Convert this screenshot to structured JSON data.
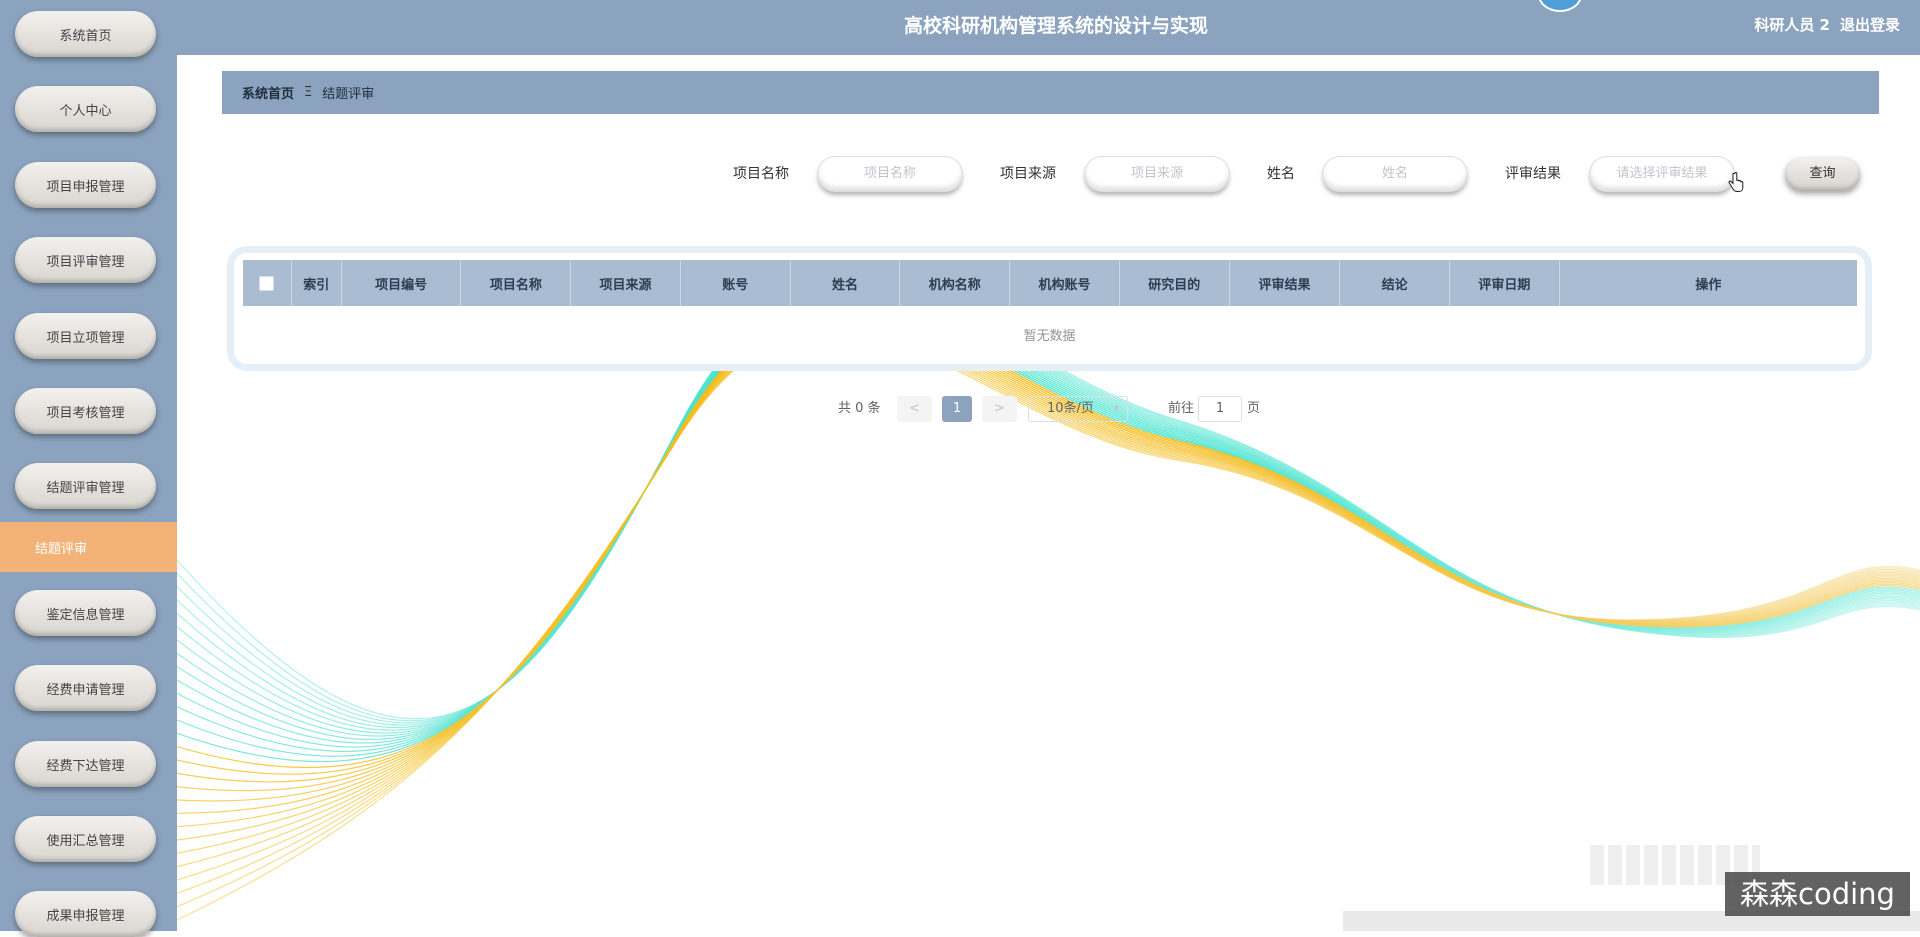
{
  "app": {
    "title": "高校科研机构管理系统的设计与实现",
    "user": "科研人员 2",
    "logout": "退出登录"
  },
  "sidebar": {
    "items": [
      {
        "label": "系统首页"
      },
      {
        "label": "个人中心"
      },
      {
        "label": "项目申报管理"
      },
      {
        "label": "项目评审管理"
      },
      {
        "label": "项目立项管理"
      },
      {
        "label": "项目考核管理"
      },
      {
        "label": "结题评审管理"
      },
      {
        "label": "鉴定信息管理"
      },
      {
        "label": "经费申请管理"
      },
      {
        "label": "经费下达管理"
      },
      {
        "label": "使用汇总管理"
      },
      {
        "label": "成果申报管理"
      }
    ],
    "active_sub": "结题评审"
  },
  "breadcrumb": {
    "home": "系统首页",
    "separator": "Ξ",
    "current": "结题评审"
  },
  "search": {
    "fields": [
      {
        "label": "项目名称",
        "placeholder": "项目名称"
      },
      {
        "label": "项目来源",
        "placeholder": "项目来源"
      },
      {
        "label": "姓名",
        "placeholder": "姓名"
      },
      {
        "label": "评审结果",
        "placeholder": "请选择评审结果"
      }
    ],
    "query_button": "查询"
  },
  "table": {
    "columns": [
      "索引",
      "项目编号",
      "项目名称",
      "项目来源",
      "账号",
      "姓名",
      "机构名称",
      "机构账号",
      "研究目的",
      "评审结果",
      "结论",
      "评审日期",
      "操作"
    ],
    "empty_text": "暂无数据"
  },
  "pagination": {
    "total_text": "共 0 条",
    "prev": "<",
    "next": ">",
    "current_page": "1",
    "page_size": "10条/页",
    "goto_label": "前往",
    "goto_value": "1",
    "page_suffix": "页"
  },
  "watermark": "森森coding",
  "colors": {
    "primary": "#8ba3be",
    "active_sub": "#f2b278",
    "table_header": "#a9bcd2"
  }
}
